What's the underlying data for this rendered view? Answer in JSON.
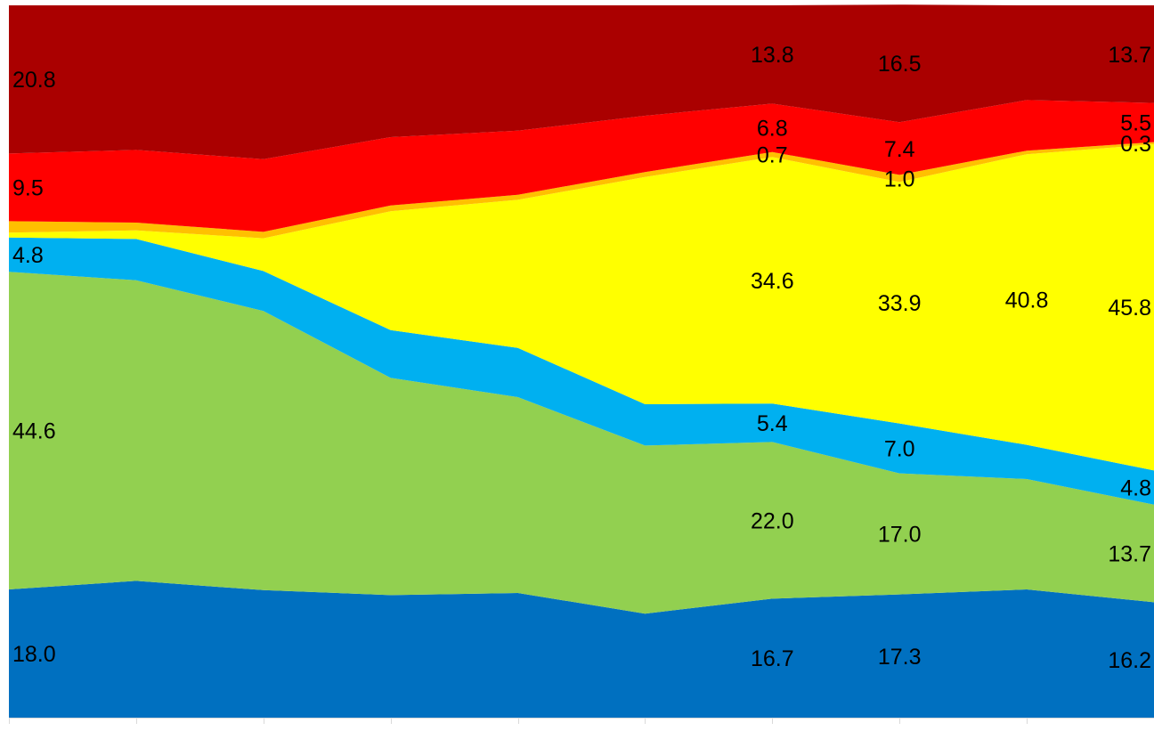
{
  "chart_data": {
    "type": "area",
    "stacked": true,
    "percent": true,
    "x_count": 10,
    "ylim": [
      0,
      100
    ],
    "grid": false,
    "legend": "none",
    "series": [
      {
        "key": "s1",
        "color": "#0070c0",
        "values": [
          18.0,
          19.2,
          17.9,
          17.2,
          17.5,
          14.6,
          16.7,
          17.3,
          18.0,
          16.2
        ]
      },
      {
        "key": "s2",
        "color": "#92d050",
        "values": [
          44.6,
          42.2,
          39.2,
          30.5,
          27.5,
          23.6,
          22.0,
          17.0,
          15.5,
          13.7
        ]
      },
      {
        "key": "s3",
        "color": "#00b0f0",
        "values": [
          4.8,
          5.8,
          5.6,
          6.7,
          6.9,
          5.8,
          5.4,
          7.0,
          4.8,
          4.8
        ]
      },
      {
        "key": "s4",
        "color": "#ffff00",
        "values": [
          0.7,
          1.2,
          4.6,
          16.7,
          20.8,
          31.9,
          34.6,
          33.9,
          40.8,
          45.8
        ]
      },
      {
        "key": "s5",
        "color": "#ffc000",
        "values": [
          1.6,
          1.1,
          0.9,
          0.8,
          0.7,
          0.7,
          0.7,
          1.0,
          0.5,
          0.3
        ]
      },
      {
        "key": "s6",
        "color": "#ff0000",
        "values": [
          9.5,
          10.2,
          10.2,
          9.6,
          9.0,
          7.9,
          6.8,
          7.4,
          7.1,
          5.5
        ]
      },
      {
        "key": "s7",
        "color": "#aa0000",
        "values": [
          20.8,
          20.3,
          21.6,
          18.5,
          17.6,
          15.5,
          13.8,
          16.5,
          13.3,
          13.7
        ]
      }
    ],
    "data_labels": [
      {
        "series": 0,
        "index": 0,
        "text": "18.0"
      },
      {
        "series": 0,
        "index": 6,
        "text": "16.7"
      },
      {
        "series": 0,
        "index": 7,
        "text": "17.3"
      },
      {
        "series": 0,
        "index": 9,
        "text": "16.2"
      },
      {
        "series": 1,
        "index": 0,
        "text": "44.6"
      },
      {
        "series": 1,
        "index": 6,
        "text": "22.0"
      },
      {
        "series": 1,
        "index": 7,
        "text": "17.0"
      },
      {
        "series": 1,
        "index": 9,
        "text": "13.7"
      },
      {
        "series": 2,
        "index": 0,
        "text": "4.8"
      },
      {
        "series": 2,
        "index": 6,
        "text": "5.4"
      },
      {
        "series": 2,
        "index": 7,
        "text": "7.0"
      },
      {
        "series": 2,
        "index": 9,
        "text": "4.8"
      },
      {
        "series": 3,
        "index": 6,
        "text": "34.6"
      },
      {
        "series": 3,
        "index": 7,
        "text": "33.9"
      },
      {
        "series": 3,
        "index": 8,
        "text": "40.8"
      },
      {
        "series": 3,
        "index": 9,
        "text": "45.8"
      },
      {
        "series": 4,
        "index": 6,
        "text": "0.7"
      },
      {
        "series": 4,
        "index": 7,
        "text": "1.0"
      },
      {
        "series": 4,
        "index": 9,
        "text": "0.3"
      },
      {
        "series": 5,
        "index": 0,
        "text": "9.5"
      },
      {
        "series": 5,
        "index": 6,
        "text": "6.8"
      },
      {
        "series": 5,
        "index": 7,
        "text": "7.4"
      },
      {
        "series": 5,
        "index": 9,
        "text": "5.5"
      },
      {
        "series": 6,
        "index": 0,
        "text": "20.8"
      },
      {
        "series": 6,
        "index": 6,
        "text": "13.8"
      },
      {
        "series": 6,
        "index": 7,
        "text": "16.5"
      },
      {
        "series": 6,
        "index": 9,
        "text": "13.7"
      }
    ]
  }
}
